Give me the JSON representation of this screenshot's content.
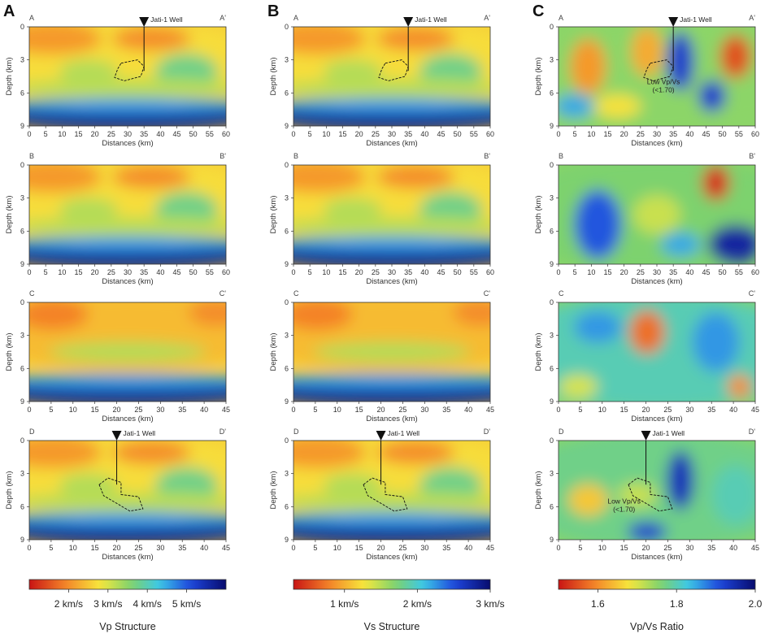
{
  "figure": {
    "columns": [
      {
        "letter": "A",
        "colorbar": {
          "title": "Vp Structure",
          "ticks": [
            "2 km/s",
            "3 km/s",
            "4 km/s",
            "5 km/s"
          ],
          "tick_values": [
            2.2,
            3.0,
            3.8,
            4.6
          ],
          "range": [
            1.4,
            5.4
          ],
          "cmap": "jet_r"
        }
      },
      {
        "letter": "B",
        "colorbar": {
          "title": "Vs Structure",
          "ticks": [
            "1 km/s",
            "2 km/s",
            "3 km/s"
          ],
          "tick_values": [
            1.0,
            2.0,
            3.0
          ],
          "range": [
            0.3,
            3.0
          ],
          "cmap": "jet_r"
        }
      },
      {
        "letter": "C",
        "colorbar": {
          "title": "Vp/Vs Ratio",
          "ticks": [
            "1.6",
            "1.8",
            "2.0"
          ],
          "tick_values": [
            1.6,
            1.8,
            2.0
          ],
          "range": [
            1.5,
            2.0
          ],
          "cmap": "jet_r"
        }
      }
    ],
    "rows": [
      {
        "left": "A",
        "right": "A'",
        "x_max": 60,
        "x_ticks": [
          "0",
          "5",
          "10",
          "15",
          "20",
          "25",
          "30",
          "35",
          "40",
          "45",
          "50",
          "55",
          "60"
        ],
        "well_x": 35,
        "well_label": "Jati-1 Well",
        "well_on": [
          true,
          true,
          true
        ]
      },
      {
        "left": "B",
        "right": "B'",
        "x_max": 60,
        "x_ticks": [
          "0",
          "5",
          "10",
          "15",
          "20",
          "25",
          "30",
          "35",
          "40",
          "45",
          "50",
          "55",
          "60"
        ],
        "well_on": [
          false,
          false,
          false
        ]
      },
      {
        "left": "C",
        "right": "C'",
        "x_max": 45,
        "x_ticks": [
          "0",
          "5",
          "10",
          "15",
          "20",
          "25",
          "30",
          "35",
          "40",
          "45"
        ],
        "well_on": [
          false,
          false,
          false
        ]
      },
      {
        "left": "D",
        "right": "D'",
        "x_max": 45,
        "x_ticks": [
          "0",
          "5",
          "10",
          "15",
          "20",
          "25",
          "30",
          "35",
          "40",
          "45"
        ],
        "well_x": 20,
        "well_label": "Jati-1 Well",
        "well_on": [
          true,
          true,
          true
        ]
      }
    ],
    "y_ticks": [
      "0",
      "3",
      "6",
      "9"
    ],
    "xlabel": "Distances (km)",
    "ylabel": "Depth (km)",
    "annotations": [
      {
        "row": 0,
        "col": 2,
        "lines": [
          "Low Vp/Vs",
          "(<1.70)"
        ],
        "x": 32,
        "y": 5.2
      },
      {
        "row": 3,
        "col": 2,
        "lines": [
          "Low Vp/Vs",
          "(<1.70)"
        ],
        "x": 15,
        "y": 5.7
      }
    ]
  },
  "chart_data": [
    {
      "type": "heatmap",
      "panel": "A (A-A')",
      "variable": "Vp",
      "unit": "km/s",
      "x": [
        0,
        60
      ],
      "ylim": [
        0,
        9
      ],
      "low_vp_vs_outline": [
        [
          28,
          3.3
        ],
        [
          33,
          3.0
        ],
        [
          35,
          3.6
        ],
        [
          34,
          4.5
        ],
        [
          29,
          4.9
        ],
        [
          26,
          4.6
        ],
        [
          27,
          3.8
        ]
      ]
    },
    {
      "type": "heatmap",
      "panel": "B (A-A')",
      "variable": "Vs",
      "unit": "km/s",
      "x": [
        0,
        60
      ],
      "ylim": [
        0,
        9
      ],
      "low_vp_vs_outline": [
        [
          28,
          3.3
        ],
        [
          33,
          3.0
        ],
        [
          35,
          3.6
        ],
        [
          34,
          4.5
        ],
        [
          29,
          4.9
        ],
        [
          26,
          4.6
        ],
        [
          27,
          3.8
        ]
      ]
    },
    {
      "type": "heatmap",
      "panel": "C (A-A')",
      "variable": "Vp/Vs",
      "x": [
        0,
        60
      ],
      "ylim": [
        0,
        9
      ],
      "low_vp_vs_outline": [
        [
          28,
          3.3
        ],
        [
          33,
          3.0
        ],
        [
          35,
          3.6
        ],
        [
          34,
          4.5
        ],
        [
          29,
          4.9
        ],
        [
          26,
          4.6
        ],
        [
          27,
          3.8
        ]
      ]
    },
    {
      "type": "heatmap",
      "panel": "A (B-B')",
      "variable": "Vp",
      "x": [
        0,
        60
      ],
      "ylim": [
        0,
        9
      ]
    },
    {
      "type": "heatmap",
      "panel": "B (B-B')",
      "variable": "Vs",
      "x": [
        0,
        60
      ],
      "ylim": [
        0,
        9
      ]
    },
    {
      "type": "heatmap",
      "panel": "C (B-B')",
      "variable": "Vp/Vs",
      "x": [
        0,
        60
      ],
      "ylim": [
        0,
        9
      ]
    },
    {
      "type": "heatmap",
      "panel": "A (C-C')",
      "variable": "Vp",
      "x": [
        0,
        45
      ],
      "ylim": [
        0,
        9
      ]
    },
    {
      "type": "heatmap",
      "panel": "B (C-C')",
      "variable": "Vs",
      "x": [
        0,
        45
      ],
      "ylim": [
        0,
        9
      ]
    },
    {
      "type": "heatmap",
      "panel": "C (C-C')",
      "variable": "Vp/Vs",
      "x": [
        0,
        45
      ],
      "ylim": [
        0,
        9
      ]
    },
    {
      "type": "heatmap",
      "panel": "A (D-D')",
      "variable": "Vp",
      "x": [
        0,
        45
      ],
      "ylim": [
        0,
        9
      ],
      "low_vp_vs_outline": [
        [
          16,
          4.0
        ],
        [
          18,
          3.4
        ],
        [
          21,
          3.8
        ],
        [
          21,
          4.9
        ],
        [
          25,
          5.1
        ],
        [
          26,
          6.2
        ],
        [
          23,
          6.4
        ],
        [
          20,
          5.7
        ],
        [
          17,
          5.0
        ]
      ]
    },
    {
      "type": "heatmap",
      "panel": "B (D-D')",
      "variable": "Vs",
      "x": [
        0,
        45
      ],
      "ylim": [
        0,
        9
      ],
      "low_vp_vs_outline": [
        [
          16,
          4.0
        ],
        [
          18,
          3.4
        ],
        [
          21,
          3.8
        ],
        [
          21,
          4.9
        ],
        [
          25,
          5.1
        ],
        [
          26,
          6.2
        ],
        [
          23,
          6.4
        ],
        [
          20,
          5.7
        ],
        [
          17,
          5.0
        ]
      ]
    },
    {
      "type": "heatmap",
      "panel": "C (D-D')",
      "variable": "Vp/Vs",
      "x": [
        0,
        45
      ],
      "ylim": [
        0,
        9
      ],
      "low_vp_vs_outline": [
        [
          16,
          4.0
        ],
        [
          18,
          3.4
        ],
        [
          21,
          3.8
        ],
        [
          21,
          4.9
        ],
        [
          25,
          5.1
        ],
        [
          26,
          6.2
        ],
        [
          23,
          6.4
        ],
        [
          20,
          5.7
        ],
        [
          17,
          5.0
        ]
      ]
    }
  ],
  "colors": {
    "red": "#d7191c",
    "orange": "#f28c28",
    "yellow": "#f6e93a",
    "green": "#7bd068",
    "cyan": "#3fc6e6",
    "blue": "#1c45d8",
    "navy": "#0b1070"
  }
}
